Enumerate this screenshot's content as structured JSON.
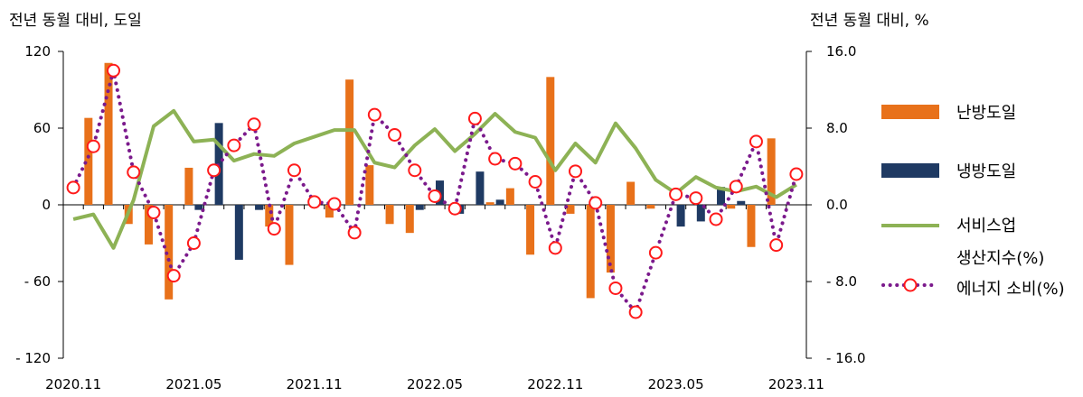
{
  "chart_data": {
    "type": "bar",
    "y_left_label": "전년 동월 대비, 도일",
    "y_right_label": "전년 동월 대비, %",
    "y_left_ticks": [
      "120",
      "60",
      "0",
      "- 60",
      "- 120"
    ],
    "y_right_ticks": [
      "16.0",
      "8.0",
      "0.0",
      "- 8.0",
      "- 16.0"
    ],
    "x_tick_labels": [
      "2020.11",
      "2021.05",
      "2021.11",
      "2022.05",
      "2022.11",
      "2023.05",
      "2023.11"
    ],
    "ylim_left": [
      -120,
      120
    ],
    "ylim_right": [
      -16,
      16
    ],
    "x": [
      "2020.11",
      "2020.12",
      "2021.01",
      "2021.02",
      "2021.03",
      "2021.04",
      "2021.05",
      "2021.06",
      "2021.07",
      "2021.08",
      "2021.09",
      "2021.10",
      "2021.11",
      "2021.12",
      "2022.01",
      "2022.02",
      "2022.03",
      "2022.04",
      "2022.05",
      "2022.06",
      "2022.07",
      "2022.08",
      "2022.09",
      "2022.10",
      "2022.11",
      "2022.12",
      "2023.01",
      "2023.02",
      "2023.03",
      "2023.04",
      "2023.05",
      "2023.06",
      "2023.07",
      "2023.08",
      "2023.09",
      "2023.10",
      "2023.11"
    ],
    "series": [
      {
        "name": "난방도일",
        "type": "bar",
        "axis": "left",
        "color": "#E8711A",
        "values": [
          0,
          68,
          111,
          -15,
          -31,
          -74,
          29,
          0,
          0,
          0,
          -17,
          -47,
          0,
          -10,
          98,
          31,
          -15,
          -22,
          0,
          0,
          0,
          2,
          13,
          -39,
          100,
          -7,
          -73,
          -53,
          18,
          -3,
          0,
          0,
          0,
          -3,
          -33,
          52,
          0
        ]
      },
      {
        "name": "냉방도일",
        "type": "bar",
        "axis": "left",
        "color": "#1F3A63",
        "values": [
          0,
          0,
          0,
          0,
          0,
          0,
          -4,
          64,
          -43,
          -4,
          0,
          0,
          0,
          0,
          0,
          0,
          0,
          -4,
          19,
          -7,
          26,
          4,
          0,
          0,
          0,
          0,
          0,
          0,
          0,
          0,
          -17,
          -13,
          14,
          3,
          0,
          0,
          0
        ]
      },
      {
        "name": "서비스업 생산지수(%)",
        "type": "line",
        "axis": "right",
        "color": "#8DB255",
        "values": [
          -1.5,
          -1.0,
          -4.5,
          0.5,
          8.2,
          9.8,
          6.6,
          6.8,
          4.6,
          5.3,
          5.1,
          6.4,
          7.1,
          7.8,
          7.8,
          4.4,
          3.9,
          6.2,
          7.9,
          5.6,
          7.4,
          9.5,
          7.6,
          7.0,
          3.6,
          6.4,
          4.4,
          8.5,
          5.9,
          2.6,
          1.2,
          2.9,
          1.8,
          1.4,
          1.9,
          0.8,
          2.1
        ]
      },
      {
        "name": "에너지 소비(%)",
        "type": "line",
        "axis": "right",
        "color": "#7B1A8C",
        "values": [
          1.8,
          6.1,
          14.0,
          3.4,
          -0.8,
          -7.4,
          -4.0,
          3.6,
          6.2,
          8.4,
          -2.5,
          3.6,
          0.3,
          0.1,
          -2.9,
          9.4,
          7.3,
          3.6,
          0.9,
          -0.4,
          9.0,
          4.8,
          4.3,
          2.4,
          -4.5,
          3.5,
          0.2,
          -8.7,
          -11.2,
          -5.0,
          1.1,
          0.7,
          -1.5,
          1.9,
          6.6,
          -4.2,
          3.2
        ]
      }
    ],
    "legend": [
      {
        "label": "난방도일"
      },
      {
        "label": "냉방도일"
      },
      {
        "label_line1": "서비스업",
        "label_line2": "생산지수(%)"
      },
      {
        "label": "에너지 소비(%)"
      }
    ],
    "grid": false,
    "legend_position": "right"
  }
}
